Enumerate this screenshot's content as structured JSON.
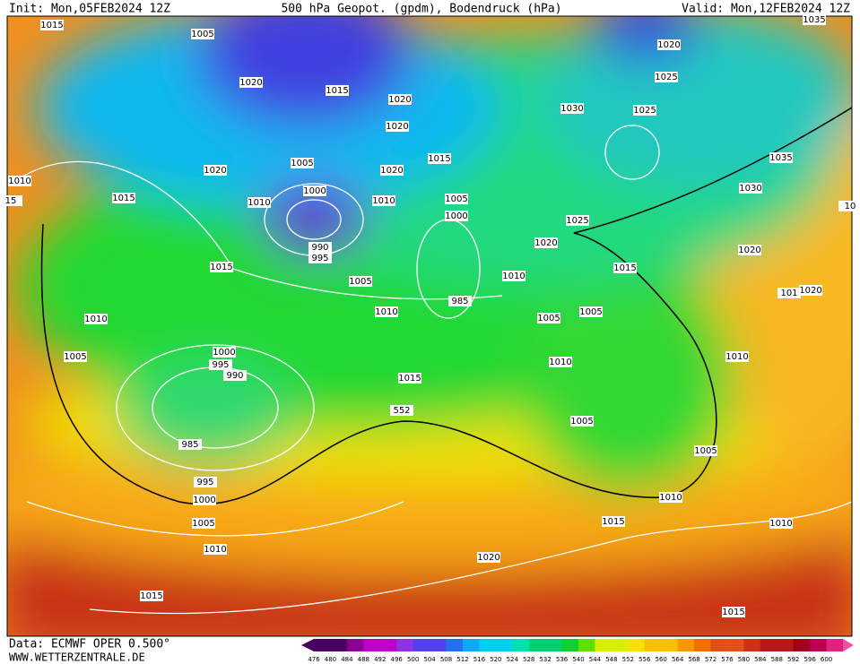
{
  "header": {
    "init": "Init: Mon,05FEB2024 12Z",
    "title": "500 hPa Geopot. (gpdm), Bodendruck (hPa)",
    "valid": "Valid: Mon,12FEB2024 12Z"
  },
  "isobar_labels": [
    1015,
    1005,
    1020,
    1015,
    1020,
    1020,
    1005,
    1020,
    1015,
    1000,
    1010,
    1010,
    1005,
    1000,
    990,
    995,
    1005,
    1010,
    15,
    1020,
    1015,
    1015,
    1010,
    1010,
    985,
    1005,
    1000,
    995,
    990,
    985,
    1015,
    552,
    995,
    1000,
    1005,
    1010,
    1015,
    1020,
    1015,
    1010,
    1005,
    1005,
    1010,
    1005,
    1005,
    1010,
    1020,
    1025,
    1015,
    1030,
    1025,
    1025,
    1020,
    1035,
    1035,
    1030,
    1020,
    1020,
    101,
    1010,
    1010,
    1015,
    10
  ],
  "colorbar": {
    "ticks": [
      476,
      480,
      484,
      488,
      492,
      496,
      500,
      504,
      508,
      512,
      516,
      520,
      524,
      528,
      532,
      536,
      540,
      544,
      548,
      552,
      556,
      560,
      564,
      568,
      572,
      576,
      580,
      584,
      588,
      592,
      596,
      600
    ]
  },
  "footer": {
    "source": "Data: ECMWF OPER 0.500°",
    "website": "WWW.WETTERZENTRALE.DE"
  }
}
